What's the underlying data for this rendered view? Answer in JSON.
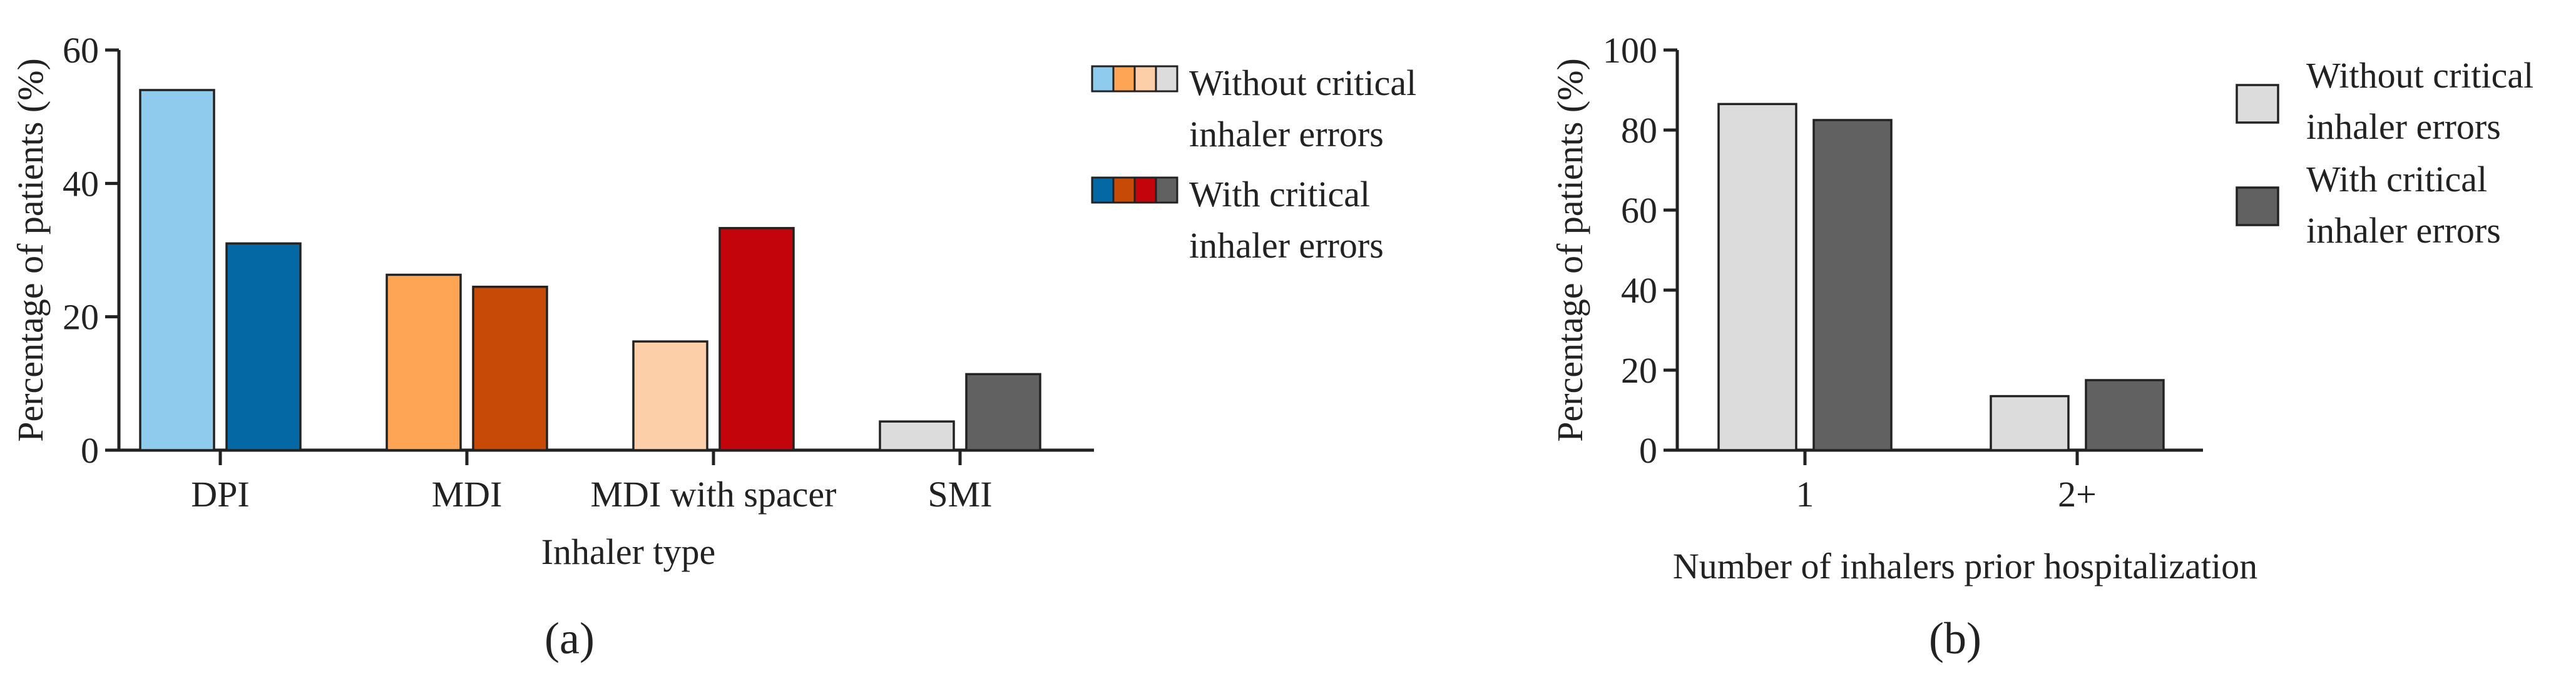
{
  "figure": {
    "panels": [
      "(a)",
      "(b)"
    ]
  },
  "chart_data": [
    {
      "type": "bar",
      "panel_label": "(a)",
      "xlabel": "Inhaler type",
      "ylabel": "Percentage of patients (%)",
      "ylim": [
        0,
        60
      ],
      "yticks": [
        0,
        20,
        40,
        60
      ],
      "categories": [
        "DPI",
        "MDI",
        "MDI with spacer",
        "SMI"
      ],
      "series": [
        {
          "name": "Without critical inhaler errors",
          "values": [
            54,
            26.3,
            16.3,
            4.3
          ]
        },
        {
          "name": "With critical inhaler errors",
          "values": [
            31,
            24.5,
            33.3,
            11.4
          ]
        }
      ],
      "colors": {
        "without": [
          "#8ecbec",
          "#fda455",
          "#fdcfa8",
          "#dcdcdc"
        ],
        "with": [
          "#0368a3",
          "#c74a06",
          "#c4040b",
          "#616161"
        ]
      },
      "legend": {
        "placement": "right",
        "entries": [
          {
            "line1": "Without critical",
            "line2": "inhaler errors"
          },
          {
            "line1": "With critical",
            "line2": "inhaler errors"
          }
        ]
      },
      "grid": false
    },
    {
      "type": "bar",
      "panel_label": "(b)",
      "xlabel": "Number of inhalers prior hospitalization",
      "ylabel": "Percentage of patients (%)",
      "ylim": [
        0,
        100
      ],
      "yticks": [
        0,
        20,
        40,
        60,
        80,
        100
      ],
      "categories": [
        "1",
        "2+"
      ],
      "series": [
        {
          "name": "Without critical inhaler errors",
          "values": [
            86.5,
            13.5
          ]
        },
        {
          "name": "With critical inhaler errors",
          "values": [
            82.5,
            17.5
          ]
        }
      ],
      "colors": {
        "without": "#dcdcdc",
        "with": "#616161"
      },
      "legend": {
        "placement": "right",
        "entries": [
          {
            "line1": "Without critical",
            "line2": "inhaler errors"
          },
          {
            "line1": "With critical",
            "line2": "inhaler errors"
          }
        ]
      },
      "grid": false
    }
  ]
}
